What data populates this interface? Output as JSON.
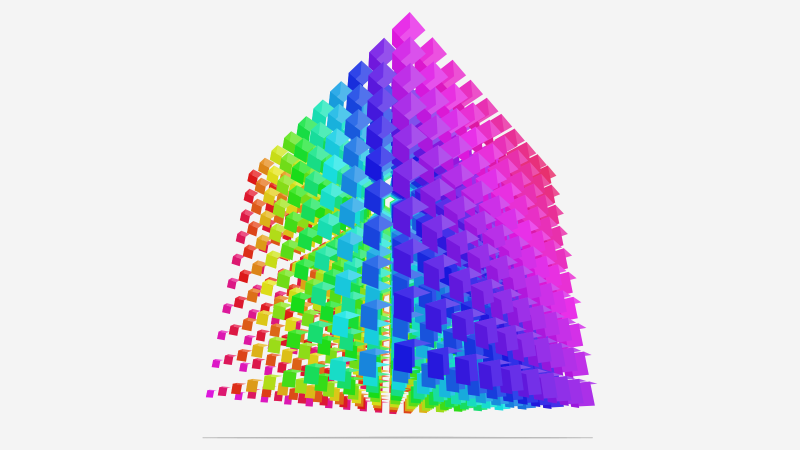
{
  "chart_data": {
    "type": "scatter3D",
    "symbol": "cube",
    "grid": true,
    "axis_labels_visible": false,
    "legend": "none",
    "color_mapping": "rainbow hue",
    "colors": {
      "background": "#f4f4f4",
      "grid_line": "#bbbbbb"
    }
  }
}
